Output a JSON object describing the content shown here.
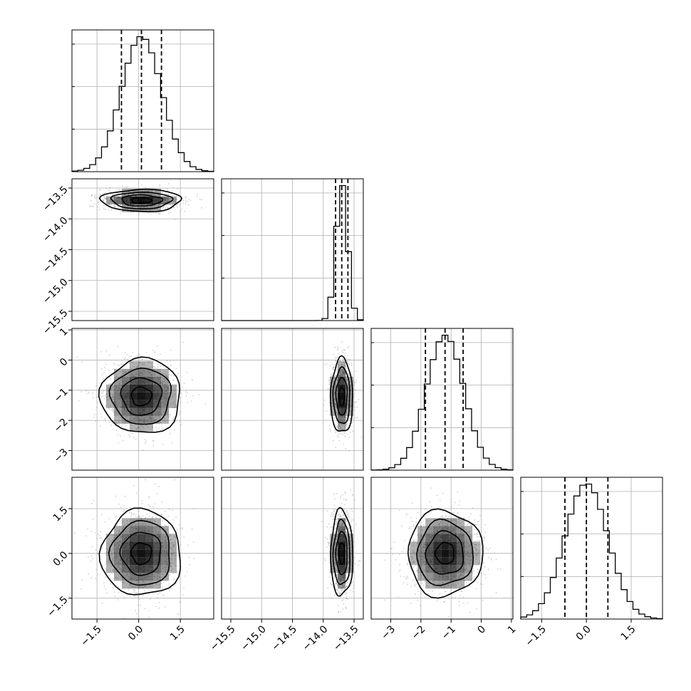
{
  "chart_data": {
    "type": "corner",
    "parameter_count": 4,
    "ranges": [
      {
        "min": -2.4,
        "max": 2.7
      },
      {
        "min": -15.65,
        "max": -13.35
      },
      {
        "min": -3.65,
        "max": 1.05
      },
      {
        "min": -2.2,
        "max": 2.55
      }
    ],
    "ticks": [
      {
        "values": [
          -1.5,
          0.0,
          1.5
        ],
        "labels": [
          "−1.5",
          "0.0",
          "1.5"
        ]
      },
      {
        "values": [
          -15.5,
          -15.0,
          -14.5,
          -14.0,
          -13.5
        ],
        "labels": [
          "−15.5",
          "−15.0",
          "−14.5",
          "−14.0",
          "−13.5"
        ]
      },
      {
        "values": [
          -3,
          -2,
          -1,
          0,
          1
        ],
        "labels": [
          "−3",
          "−2",
          "−1",
          "0",
          "1"
        ]
      },
      {
        "values": [
          -1.5,
          0.0,
          1.5
        ],
        "labels": [
          "−1.5",
          "0.0",
          "1.5"
        ]
      }
    ],
    "marginals": [
      {
        "mean": 0.1,
        "sd": 0.72,
        "quantiles": [
          -0.62,
          0.1,
          0.82
        ],
        "bins": 24
      },
      {
        "mean": -13.7,
        "sd": 0.09,
        "quantiles": [
          -13.8,
          -13.7,
          -13.6
        ],
        "bins": 24
      },
      {
        "mean": -1.2,
        "sd": 0.62,
        "quantiles": [
          -1.85,
          -1.2,
          -0.6
        ],
        "bins": 24
      },
      {
        "mean": 0.0,
        "sd": 0.72,
        "quantiles": [
          -0.72,
          0.0,
          0.72
        ],
        "bins": 24
      }
    ],
    "joint": [
      {
        "row": 1,
        "col": 0,
        "mean": [
          0.1,
          -13.7
        ],
        "sd": [
          0.72,
          0.09
        ]
      },
      {
        "row": 2,
        "col": 0,
        "mean": [
          0.1,
          -1.2
        ],
        "sd": [
          0.72,
          0.62
        ]
      },
      {
        "row": 2,
        "col": 1,
        "mean": [
          -13.7,
          -1.2
        ],
        "sd": [
          0.09,
          0.62
        ]
      },
      {
        "row": 3,
        "col": 0,
        "mean": [
          0.1,
          0.0
        ],
        "sd": [
          0.72,
          0.72
        ]
      },
      {
        "row": 3,
        "col": 1,
        "mean": [
          -13.7,
          0.0
        ],
        "sd": [
          0.09,
          0.72
        ]
      },
      {
        "row": 3,
        "col": 2,
        "mean": [
          -1.2,
          0.0
        ],
        "sd": [
          0.62,
          0.72
        ]
      }
    ],
    "contour_levels_sigma": [
      0.5,
      1.0,
      1.5,
      2.0
    ],
    "grid": true,
    "colors": {
      "line": "#000000",
      "grid": "#b0b0b0",
      "points": "#9a9a9a",
      "density": "#000000"
    }
  }
}
